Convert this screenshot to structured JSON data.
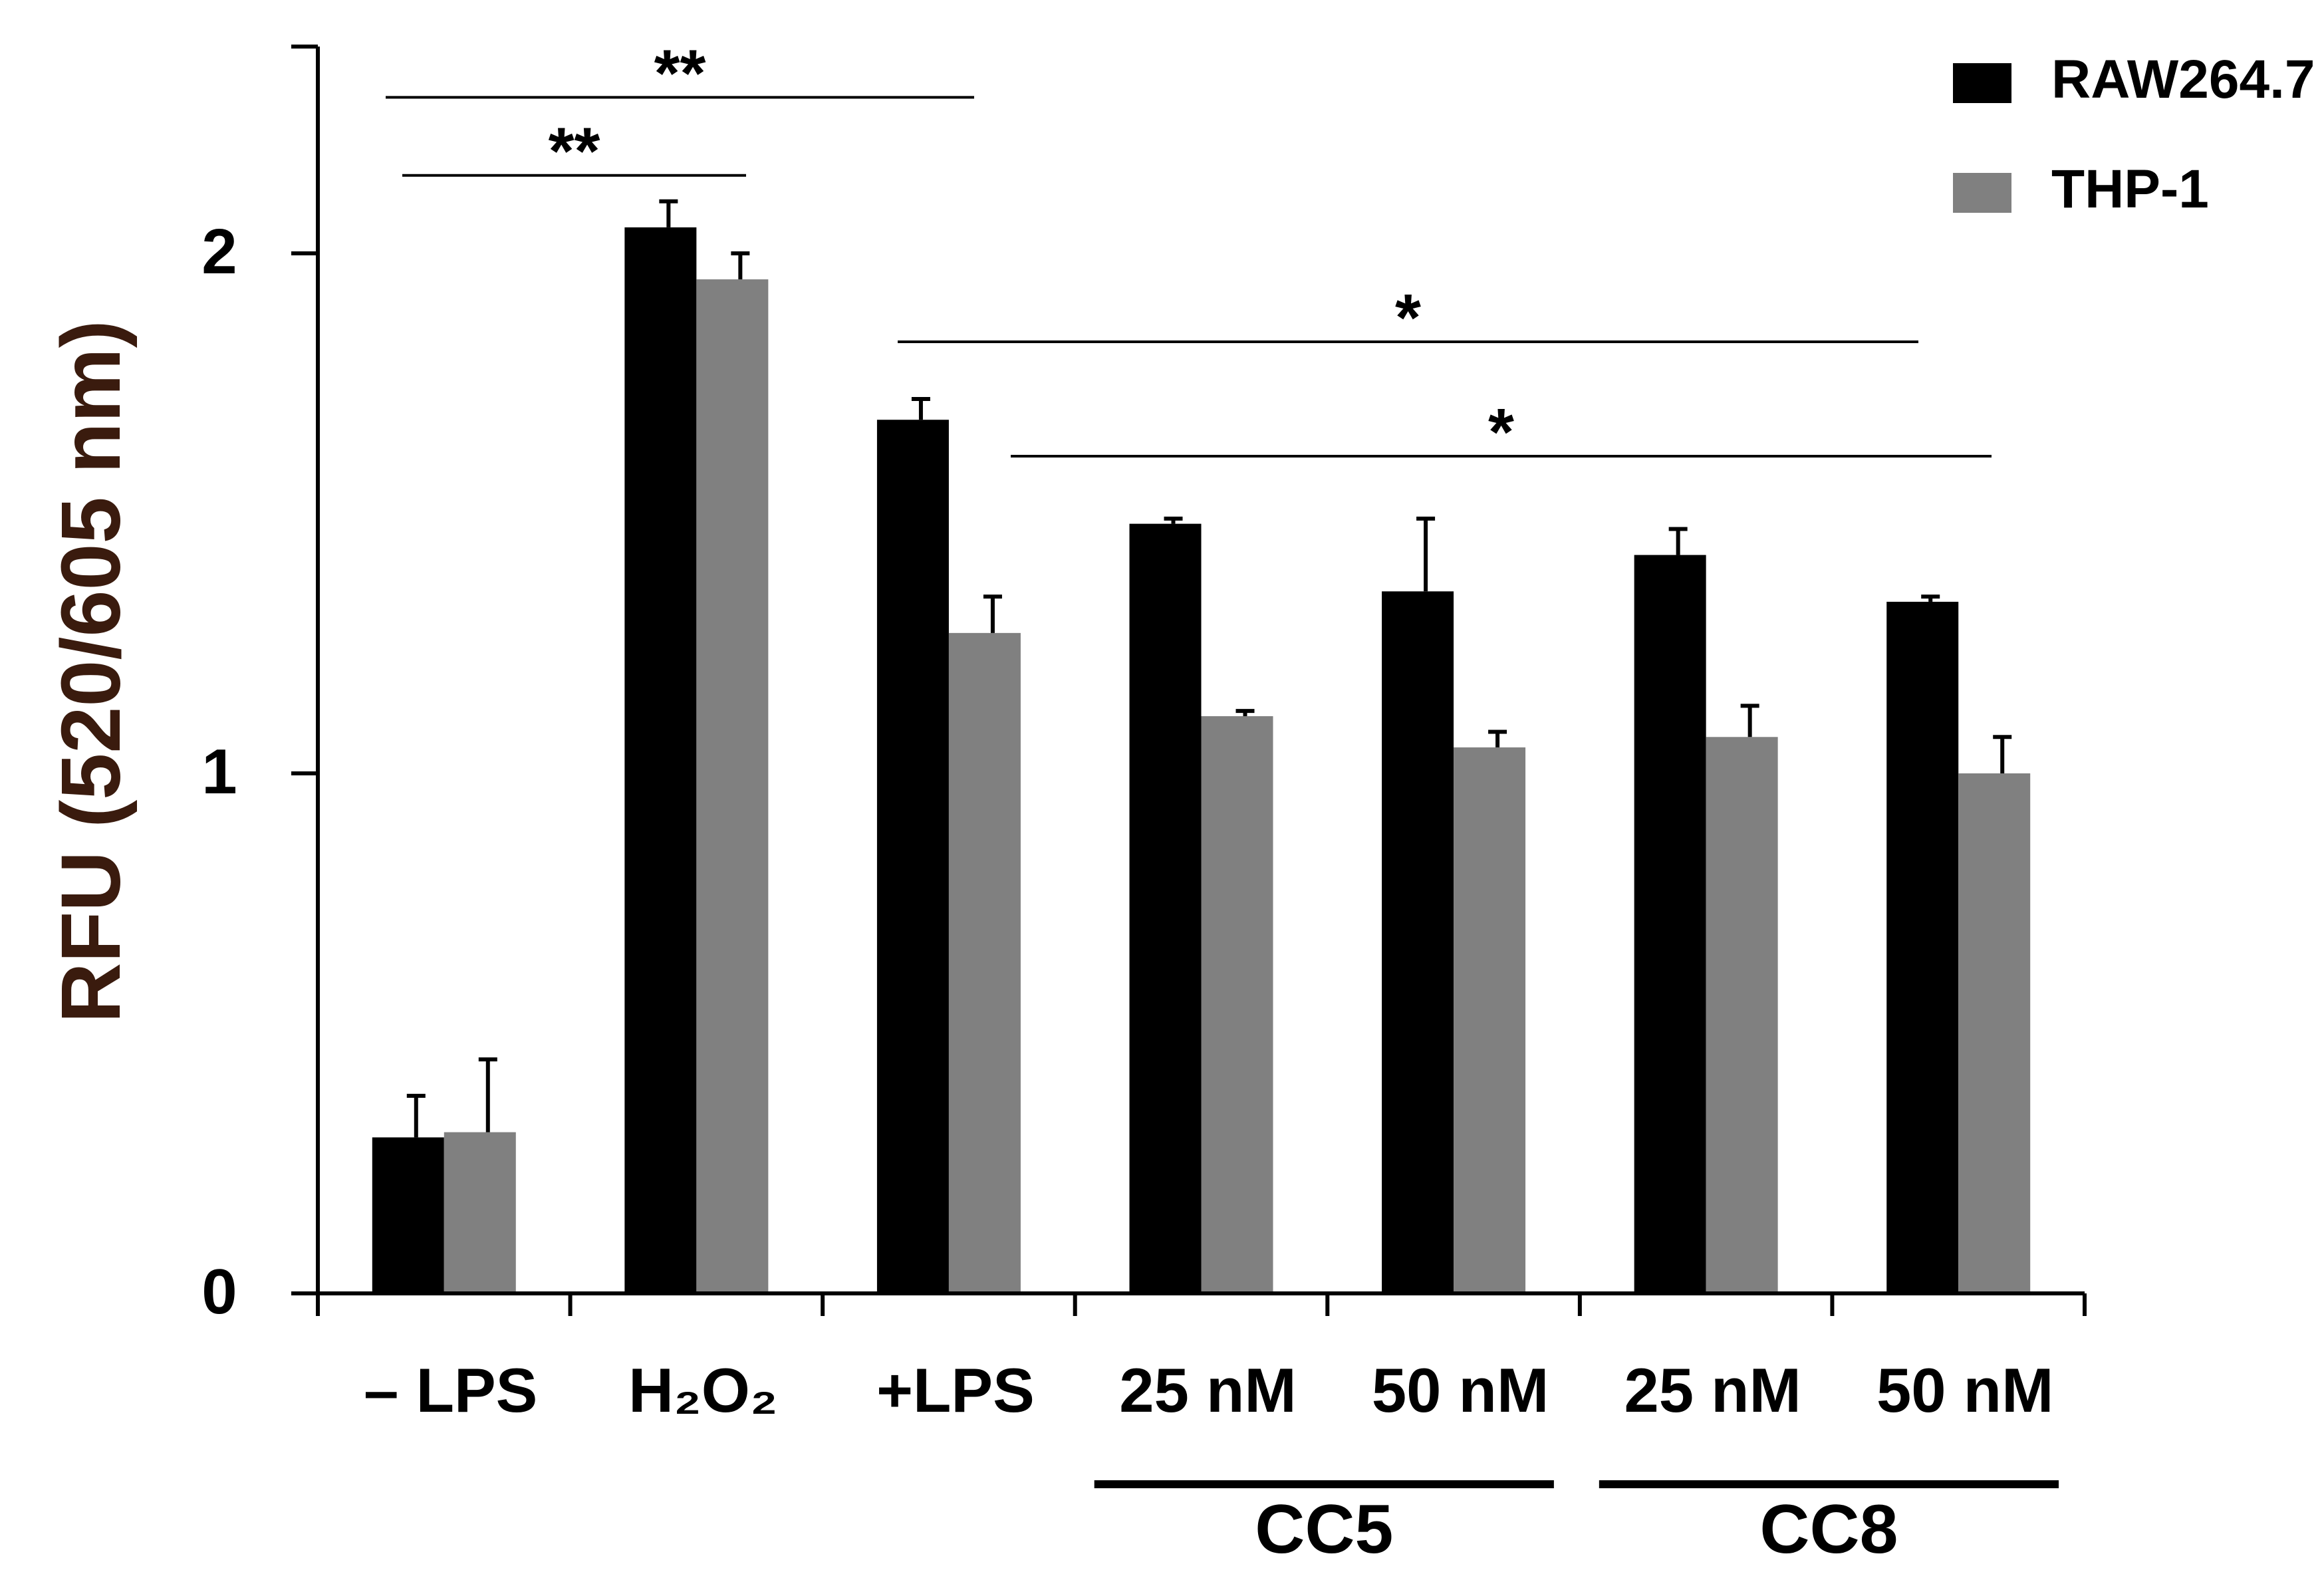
{
  "chart_data": {
    "type": "bar",
    "title": "",
    "xlabel": "",
    "ylabel": "RFU (520/605 nm)",
    "ylim": [
      0,
      2.4
    ],
    "yticks": [
      0,
      1,
      2
    ],
    "ytick_labels": [
      "0",
      "1",
      "2"
    ],
    "grid": false,
    "legend_position": "top-right",
    "categories": [
      "– LPS",
      "H₂O₂",
      "+LPS",
      "25 nM",
      "50 nM",
      "25 nM",
      "50 nM"
    ],
    "series": [
      {
        "name": "RAW264.7",
        "color": "#000000",
        "values": [
          0.3,
          2.05,
          1.68,
          1.48,
          1.35,
          1.42,
          1.33
        ],
        "errors": [
          0.08,
          0.05,
          0.04,
          0.01,
          0.14,
          0.05,
          0.01
        ]
      },
      {
        "name": "THP-1",
        "color": "#808080",
        "values": [
          0.31,
          1.95,
          1.27,
          1.11,
          1.05,
          1.07,
          1.0
        ],
        "errors": [
          0.14,
          0.05,
          0.07,
          0.01,
          0.03,
          0.06,
          0.07
        ]
      }
    ],
    "groups": [
      {
        "label": "CC5",
        "categories": [
          3,
          4
        ]
      },
      {
        "label": "CC8",
        "categories": [
          5,
          6
        ]
      }
    ],
    "significance": [
      {
        "label": "**",
        "y": 2.3
      },
      {
        "label": "**",
        "y": 2.15
      },
      {
        "label": "*",
        "y": 1.83
      },
      {
        "label": "*",
        "y": 1.61
      }
    ],
    "axis_title_color": "#3a1b0e"
  }
}
